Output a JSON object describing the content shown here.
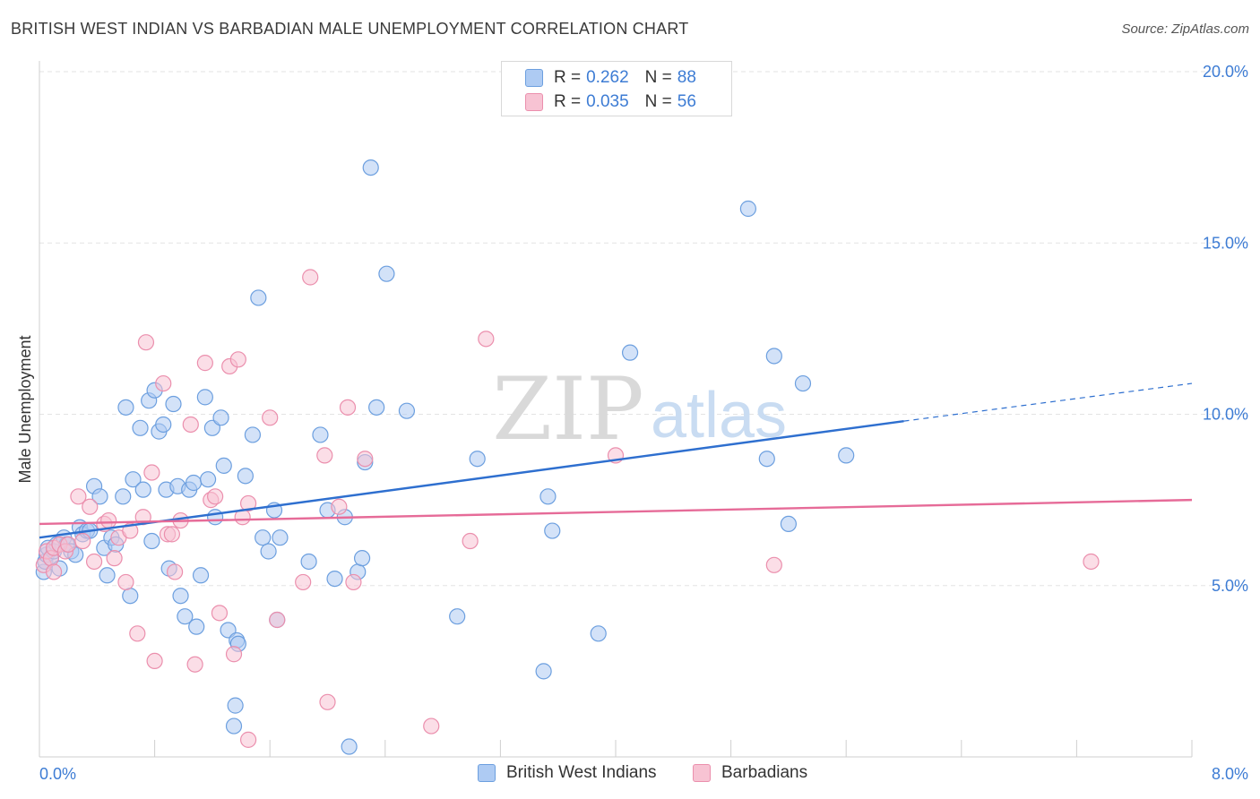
{
  "header": {
    "title": "BRITISH WEST INDIAN VS BARBADIAN MALE UNEMPLOYMENT CORRELATION CHART",
    "source": "Source: ZipAtlas.com"
  },
  "watermark": {
    "part1": "ZIP",
    "part2": "atlas"
  },
  "legend_top": {
    "rows": [
      {
        "r_label": "R =",
        "r_value": "0.262",
        "n_label": "N =",
        "n_value": "88"
      },
      {
        "r_label": "R =",
        "r_value": "0.035",
        "n_label": "N =",
        "n_value": "56"
      }
    ]
  },
  "legend_bottom": {
    "items": [
      {
        "label": "British West Indians"
      },
      {
        "label": "Barbadians"
      }
    ]
  },
  "colors": {
    "blue_fill": "#aecbf3",
    "blue_stroke": "#6c9fdf",
    "blue_line": "#2e6fcf",
    "pink_fill": "#f7c3d3",
    "pink_stroke": "#eb8fad",
    "pink_line": "#e66b98",
    "axis_label": "#3d7cd4",
    "grid": "#e3e3e3"
  },
  "chart_data": {
    "type": "scatter",
    "title": "BRITISH WEST INDIAN VS BARBADIAN MALE UNEMPLOYMENT CORRELATION CHART",
    "xlabel": "",
    "ylabel": "Male Unemployment",
    "xlim": [
      0,
      8
    ],
    "ylim": [
      0,
      20
    ],
    "x_tick_labels": [
      "0.0%",
      "8.0%"
    ],
    "y_ticks": [
      5,
      10,
      15,
      20
    ],
    "y_tick_labels": [
      "5.0%",
      "10.0%",
      "15.0%",
      "20.0%"
    ],
    "legend_position": "top-center",
    "series": [
      {
        "name": "British West Indians",
        "R": 0.262,
        "N": 88,
        "trend": {
          "x0": 0,
          "y0": 6.4,
          "x1": 6.0,
          "y1": 9.8,
          "dashed_to_x": 8.0,
          "dashed_to_y": 10.9
        },
        "points": [
          [
            0.03,
            5.4
          ],
          [
            0.04,
            5.7
          ],
          [
            0.05,
            5.9
          ],
          [
            0.06,
            6.1
          ],
          [
            0.08,
            5.8
          ],
          [
            0.1,
            6.0
          ],
          [
            0.12,
            6.2
          ],
          [
            0.14,
            5.5
          ],
          [
            0.17,
            6.4
          ],
          [
            0.19,
            6.2
          ],
          [
            0.22,
            6.0
          ],
          [
            0.25,
            5.9
          ],
          [
            0.28,
            6.7
          ],
          [
            0.3,
            6.5
          ],
          [
            0.33,
            6.6
          ],
          [
            0.35,
            6.6
          ],
          [
            0.38,
            7.9
          ],
          [
            0.42,
            7.6
          ],
          [
            0.45,
            6.1
          ],
          [
            0.47,
            5.3
          ],
          [
            0.5,
            6.4
          ],
          [
            0.53,
            6.2
          ],
          [
            0.58,
            7.6
          ],
          [
            0.6,
            10.2
          ],
          [
            0.63,
            4.7
          ],
          [
            0.65,
            8.1
          ],
          [
            0.7,
            9.6
          ],
          [
            0.72,
            7.8
          ],
          [
            0.76,
            10.4
          ],
          [
            0.78,
            6.3
          ],
          [
            0.8,
            10.7
          ],
          [
            0.83,
            9.5
          ],
          [
            0.86,
            9.7
          ],
          [
            0.88,
            7.8
          ],
          [
            0.9,
            5.5
          ],
          [
            0.93,
            10.3
          ],
          [
            0.96,
            7.9
          ],
          [
            0.98,
            4.7
          ],
          [
            1.01,
            4.1
          ],
          [
            1.04,
            7.8
          ],
          [
            1.07,
            8.0
          ],
          [
            1.09,
            3.8
          ],
          [
            1.12,
            5.3
          ],
          [
            1.15,
            10.5
          ],
          [
            1.17,
            8.1
          ],
          [
            1.2,
            9.6
          ],
          [
            1.22,
            7.0
          ],
          [
            1.26,
            9.9
          ],
          [
            1.28,
            8.5
          ],
          [
            1.31,
            3.7
          ],
          [
            1.36,
            1.5
          ],
          [
            1.37,
            3.4
          ],
          [
            1.38,
            3.3
          ],
          [
            1.43,
            8.2
          ],
          [
            1.48,
            9.4
          ],
          [
            1.52,
            13.4
          ],
          [
            1.55,
            6.4
          ],
          [
            1.59,
            6.0
          ],
          [
            1.63,
            7.2
          ],
          [
            1.65,
            4.0
          ],
          [
            1.67,
            6.4
          ],
          [
            1.87,
            5.7
          ],
          [
            1.95,
            9.4
          ],
          [
            2.0,
            7.2
          ],
          [
            2.05,
            5.2
          ],
          [
            2.12,
            7.0
          ],
          [
            2.21,
            5.4
          ],
          [
            2.24,
            5.8
          ],
          [
            2.26,
            8.6
          ],
          [
            2.3,
            17.2
          ],
          [
            2.34,
            10.2
          ],
          [
            2.41,
            14.1
          ],
          [
            2.55,
            10.1
          ],
          [
            2.9,
            4.1
          ],
          [
            3.04,
            8.7
          ],
          [
            3.5,
            2.5
          ],
          [
            3.53,
            7.6
          ],
          [
            3.56,
            6.6
          ],
          [
            3.88,
            3.6
          ],
          [
            4.1,
            11.8
          ],
          [
            4.92,
            16.0
          ],
          [
            5.05,
            8.7
          ],
          [
            5.1,
            11.7
          ],
          [
            5.2,
            6.8
          ],
          [
            5.3,
            10.9
          ],
          [
            5.6,
            8.8
          ],
          [
            1.35,
            0.9
          ],
          [
            2.15,
            0.3
          ]
        ]
      },
      {
        "name": "Barbadians",
        "R": 0.035,
        "N": 56,
        "trend": {
          "x0": 0,
          "y0": 6.8,
          "x1": 8.0,
          "y1": 7.5
        },
        "points": [
          [
            0.03,
            5.6
          ],
          [
            0.05,
            6.0
          ],
          [
            0.08,
            5.8
          ],
          [
            0.1,
            6.1
          ],
          [
            0.14,
            6.2
          ],
          [
            0.18,
            6.0
          ],
          [
            0.2,
            6.2
          ],
          [
            0.27,
            7.6
          ],
          [
            0.3,
            6.3
          ],
          [
            0.35,
            7.3
          ],
          [
            0.38,
            5.7
          ],
          [
            0.45,
            6.8
          ],
          [
            0.48,
            6.9
          ],
          [
            0.52,
            5.8
          ],
          [
            0.55,
            6.4
          ],
          [
            0.6,
            5.1
          ],
          [
            0.63,
            6.6
          ],
          [
            0.68,
            3.6
          ],
          [
            0.72,
            7.0
          ],
          [
            0.74,
            12.1
          ],
          [
            0.78,
            8.3
          ],
          [
            0.8,
            2.8
          ],
          [
            0.86,
            10.9
          ],
          [
            0.89,
            6.5
          ],
          [
            0.92,
            6.5
          ],
          [
            0.94,
            5.4
          ],
          [
            0.98,
            6.9
          ],
          [
            1.05,
            9.7
          ],
          [
            1.08,
            2.7
          ],
          [
            1.15,
            11.5
          ],
          [
            1.19,
            7.5
          ],
          [
            1.22,
            7.6
          ],
          [
            1.25,
            4.2
          ],
          [
            1.32,
            11.4
          ],
          [
            1.35,
            3.0
          ],
          [
            1.38,
            11.6
          ],
          [
            1.41,
            7.0
          ],
          [
            1.45,
            0.5
          ],
          [
            1.6,
            9.9
          ],
          [
            1.65,
            4.0
          ],
          [
            1.83,
            5.1
          ],
          [
            1.88,
            14.0
          ],
          [
            1.98,
            8.8
          ],
          [
            2.0,
            1.6
          ],
          [
            2.08,
            7.3
          ],
          [
            2.14,
            10.2
          ],
          [
            2.18,
            5.1
          ],
          [
            2.26,
            8.7
          ],
          [
            2.72,
            0.9
          ],
          [
            2.99,
            6.3
          ],
          [
            3.1,
            12.2
          ],
          [
            4.0,
            8.8
          ],
          [
            5.1,
            5.6
          ],
          [
            7.3,
            5.7
          ],
          [
            1.45,
            7.4
          ],
          [
            0.1,
            5.4
          ]
        ]
      }
    ]
  }
}
